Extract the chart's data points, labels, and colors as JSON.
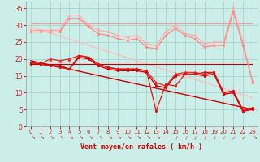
{
  "xlabel": "Vent moyen/en rafales ( km/h )",
  "background_color": "#cceee8",
  "grid_color": "#aad8d0",
  "xlim": [
    -0.5,
    23.5
  ],
  "ylim": [
    0,
    37
  ],
  "yticks": [
    0,
    5,
    10,
    15,
    20,
    25,
    30,
    35
  ],
  "xticks": [
    0,
    1,
    2,
    3,
    4,
    5,
    6,
    7,
    8,
    9,
    10,
    11,
    12,
    13,
    14,
    15,
    16,
    17,
    18,
    19,
    20,
    21,
    22,
    23
  ],
  "lines": [
    {
      "x": [
        0,
        1,
        2,
        3,
        4,
        5,
        6,
        7,
        8,
        9,
        10,
        11,
        12,
        13,
        14,
        15,
        16,
        17,
        18,
        19,
        20,
        21,
        22,
        23
      ],
      "y": [
        30.5,
        30.5,
        30.5,
        30.5,
        30.5,
        30.5,
        30.5,
        30.5,
        30.5,
        30.5,
        30.5,
        30.5,
        30.5,
        30.5,
        30.5,
        30.5,
        30.5,
        30.5,
        30.5,
        30.5,
        30.5,
        30.5,
        30.5,
        30.5
      ],
      "color": "#ff9999",
      "linewidth": 0.9,
      "marker": null,
      "markersize": 0,
      "zorder": 2
    },
    {
      "x": [
        0,
        1,
        2,
        3,
        4,
        5,
        6,
        7,
        8,
        9,
        10,
        11,
        12,
        13,
        14,
        15,
        16,
        17,
        18,
        19,
        20,
        21,
        22,
        23
      ],
      "y": [
        28.5,
        28.5,
        28.5,
        28.5,
        33,
        33,
        30,
        28.5,
        28,
        27,
        26.5,
        27,
        24.5,
        24,
        28,
        30,
        27.5,
        27,
        24.5,
        25,
        25,
        35,
        25,
        13.5
      ],
      "color": "#ffaaaa",
      "linewidth": 0.9,
      "marker": "o",
      "markersize": 2,
      "zorder": 3
    },
    {
      "x": [
        0,
        23
      ],
      "y": [
        29.5,
        8.5
      ],
      "color": "#ffbbbb",
      "linewidth": 0.9,
      "marker": null,
      "markersize": 0,
      "zorder": 2
    },
    {
      "x": [
        0,
        1,
        2,
        3,
        4,
        5,
        6,
        7,
        8,
        9,
        10,
        11,
        12,
        13,
        14,
        15,
        16,
        17,
        18,
        19,
        20,
        21,
        22,
        23
      ],
      "y": [
        28,
        28,
        28,
        28,
        32,
        32,
        29.5,
        27.5,
        27,
        26,
        25.5,
        26,
        23.5,
        23,
        27,
        29,
        27,
        26,
        23.5,
        24,
        24,
        34,
        24,
        13
      ],
      "color": "#ff8888",
      "linewidth": 0.9,
      "marker": "o",
      "markersize": 2,
      "zorder": 3
    },
    {
      "x": [
        0,
        1,
        2,
        3,
        4,
        5,
        6,
        7,
        8,
        9,
        10,
        11,
        12,
        13,
        14,
        15,
        16,
        17,
        18,
        19,
        20,
        21,
        22,
        23
      ],
      "y": [
        19,
        18.5,
        20,
        19.5,
        20,
        21,
        20.5,
        18.5,
        17.5,
        17,
        17,
        17,
        16.5,
        13,
        12,
        15.5,
        16,
        16,
        15.5,
        16,
        10,
        10.5,
        5,
        5.5
      ],
      "color": "#ee2222",
      "linewidth": 0.9,
      "marker": "^",
      "markersize": 2.5,
      "zorder": 4
    },
    {
      "x": [
        0,
        1,
        2,
        3,
        4,
        5,
        6,
        7,
        8,
        9,
        10,
        11,
        12,
        13,
        14,
        15,
        16,
        17,
        18,
        19,
        20,
        21,
        22,
        23
      ],
      "y": [
        18.5,
        18.5,
        18,
        18,
        17,
        20.5,
        20,
        18,
        17,
        16.5,
        16.5,
        16.5,
        16,
        12,
        11.5,
        15,
        15.5,
        15.5,
        15,
        15.5,
        9.5,
        10,
        4.5,
        5
      ],
      "color": "#cc0000",
      "linewidth": 1.0,
      "marker": "o",
      "markersize": 2,
      "zorder": 4
    },
    {
      "x": [
        0,
        1,
        2,
        3,
        4,
        5,
        6,
        7,
        8,
        9,
        10,
        11,
        12,
        13,
        14,
        15,
        16,
        17,
        18,
        19,
        20,
        21,
        22,
        23
      ],
      "y": [
        19,
        18.5,
        18,
        17.5,
        17,
        21,
        20.5,
        18.5,
        17.5,
        17,
        17,
        17,
        16.5,
        4.5,
        12.5,
        12,
        15.5,
        15.5,
        16,
        16,
        10,
        10.5,
        4.5,
        5.5
      ],
      "color": "#dd1111",
      "linewidth": 0.9,
      "marker": "o",
      "markersize": 2,
      "zorder": 4
    },
    {
      "x": [
        0,
        23
      ],
      "y": [
        19.5,
        5.0
      ],
      "color": "#cc0000",
      "linewidth": 1.0,
      "marker": null,
      "markersize": 0,
      "zorder": 3
    },
    {
      "x": [
        0,
        23
      ],
      "y": [
        18.5,
        18.5
      ],
      "color": "#bb0000",
      "linewidth": 0.8,
      "marker": null,
      "markersize": 0,
      "zorder": 2
    }
  ],
  "wind_angles": [
    225,
    225,
    225,
    225,
    225,
    225,
    225,
    225,
    225,
    225,
    225,
    225,
    225,
    225,
    180,
    157,
    157,
    157,
    157,
    157,
    135,
    135,
    135,
    225
  ]
}
